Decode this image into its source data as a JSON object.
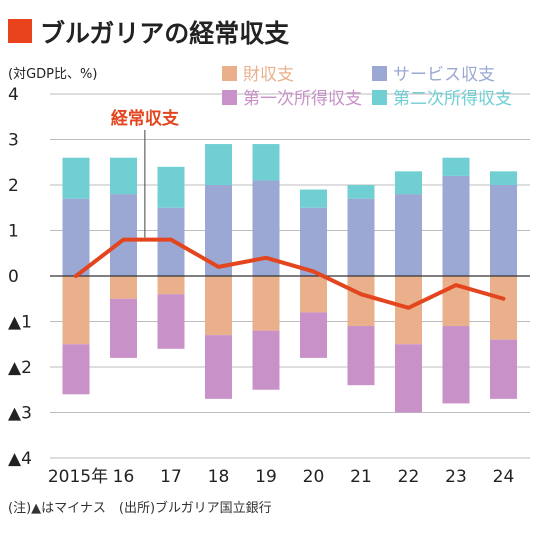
{
  "colors": {
    "title_square": "#e8431c",
    "goods": "#eab08c",
    "services": "#9aa8d3",
    "primary_income": "#c892c8",
    "secondary_income": "#70cfd3",
    "current_account": "#e3461e",
    "grid": "#bdbdbd",
    "axis": "#333333"
  },
  "chart_data": {
    "type": "bar",
    "stacked": true,
    "title": "ブルガリアの経常収支",
    "unit_label": "(対GDP比、%)",
    "categories": [
      "2015年",
      "16",
      "17",
      "18",
      "19",
      "20",
      "21",
      "22",
      "23",
      "24"
    ],
    "ylim": [
      -4,
      4
    ],
    "yticks": [
      {
        "value": 4,
        "label": "4"
      },
      {
        "value": 3,
        "label": "3"
      },
      {
        "value": 2,
        "label": "2"
      },
      {
        "value": 1,
        "label": "1"
      },
      {
        "value": 0,
        "label": "0"
      },
      {
        "value": -1,
        "label": "▲1"
      },
      {
        "value": -2,
        "label": "▲2"
      },
      {
        "value": -3,
        "label": "▲3"
      },
      {
        "value": -4,
        "label": "▲4"
      }
    ],
    "grid": true,
    "legend_position": "top-right",
    "series": [
      {
        "name": "財収支",
        "color_key": "goods",
        "values": [
          -1.5,
          -0.5,
          -0.4,
          -1.3,
          -1.2,
          -0.8,
          -1.1,
          -1.5,
          -1.1,
          -1.4
        ]
      },
      {
        "name": "サービス収支",
        "color_key": "services",
        "values": [
          1.7,
          1.8,
          1.5,
          2.0,
          2.1,
          1.5,
          1.7,
          1.8,
          2.2,
          2.0
        ]
      },
      {
        "name": "第一次所得収支",
        "color_key": "primary_income",
        "values": [
          -1.1,
          -1.3,
          -1.2,
          -1.4,
          -1.3,
          -1.0,
          -1.3,
          -1.5,
          -1.7,
          -1.3
        ]
      },
      {
        "name": "第二次所得収支",
        "color_key": "secondary_income",
        "values": [
          0.9,
          0.8,
          0.9,
          0.9,
          0.8,
          0.4,
          0.3,
          0.5,
          0.4,
          0.3
        ]
      }
    ],
    "line_series": {
      "name": "経常収支",
      "color_key": "current_account",
      "values": [
        0.0,
        0.8,
        0.8,
        0.2,
        0.4,
        0.1,
        -0.4,
        -0.7,
        -0.2,
        -0.5
      ]
    },
    "note": "(注)▲はマイナス　(出所)ブルガリア国立銀行"
  }
}
